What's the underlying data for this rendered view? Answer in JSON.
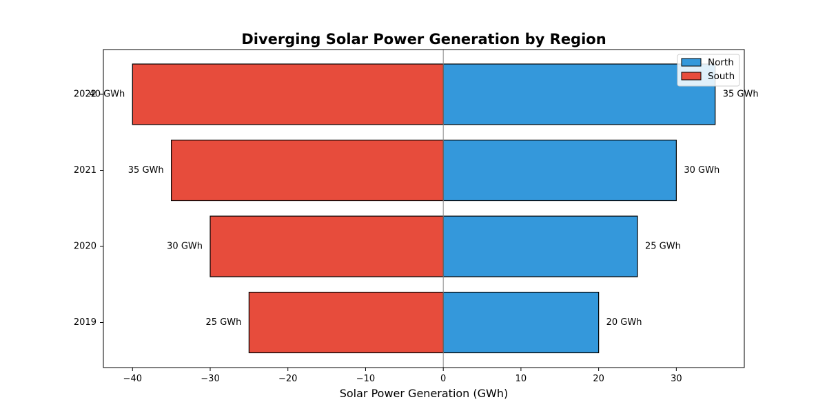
{
  "chart_data": {
    "type": "bar",
    "orientation": "horizontal",
    "diverging": true,
    "title": "Diverging Solar Power Generation by Region",
    "xlabel": "Solar Power Generation (GWh)",
    "ylabel": "",
    "categories": [
      "2019",
      "2020",
      "2021",
      "2022"
    ],
    "series": [
      {
        "name": "North",
        "values": [
          20,
          25,
          30,
          35
        ],
        "labels": [
          "20 GWh",
          "25 GWh",
          "30 GWh",
          "35 GWh"
        ],
        "color": "#3498db",
        "direction": "positive"
      },
      {
        "name": "South",
        "values": [
          25,
          30,
          35,
          40
        ],
        "labels": [
          "25 GWh",
          "30 GWh",
          "35 GWh",
          "40 GWh"
        ],
        "color": "#e74c3c",
        "direction": "negative"
      }
    ],
    "xlim": [
      -43.75,
      38.75
    ],
    "xticks": [
      -40,
      -30,
      -20,
      -10,
      0,
      10,
      20,
      30
    ],
    "xtick_labels": [
      "−40",
      "−30",
      "−20",
      "−10",
      "0",
      "10",
      "20",
      "30"
    ],
    "grid": false,
    "zero_line": true,
    "legend_position": "top-right"
  }
}
